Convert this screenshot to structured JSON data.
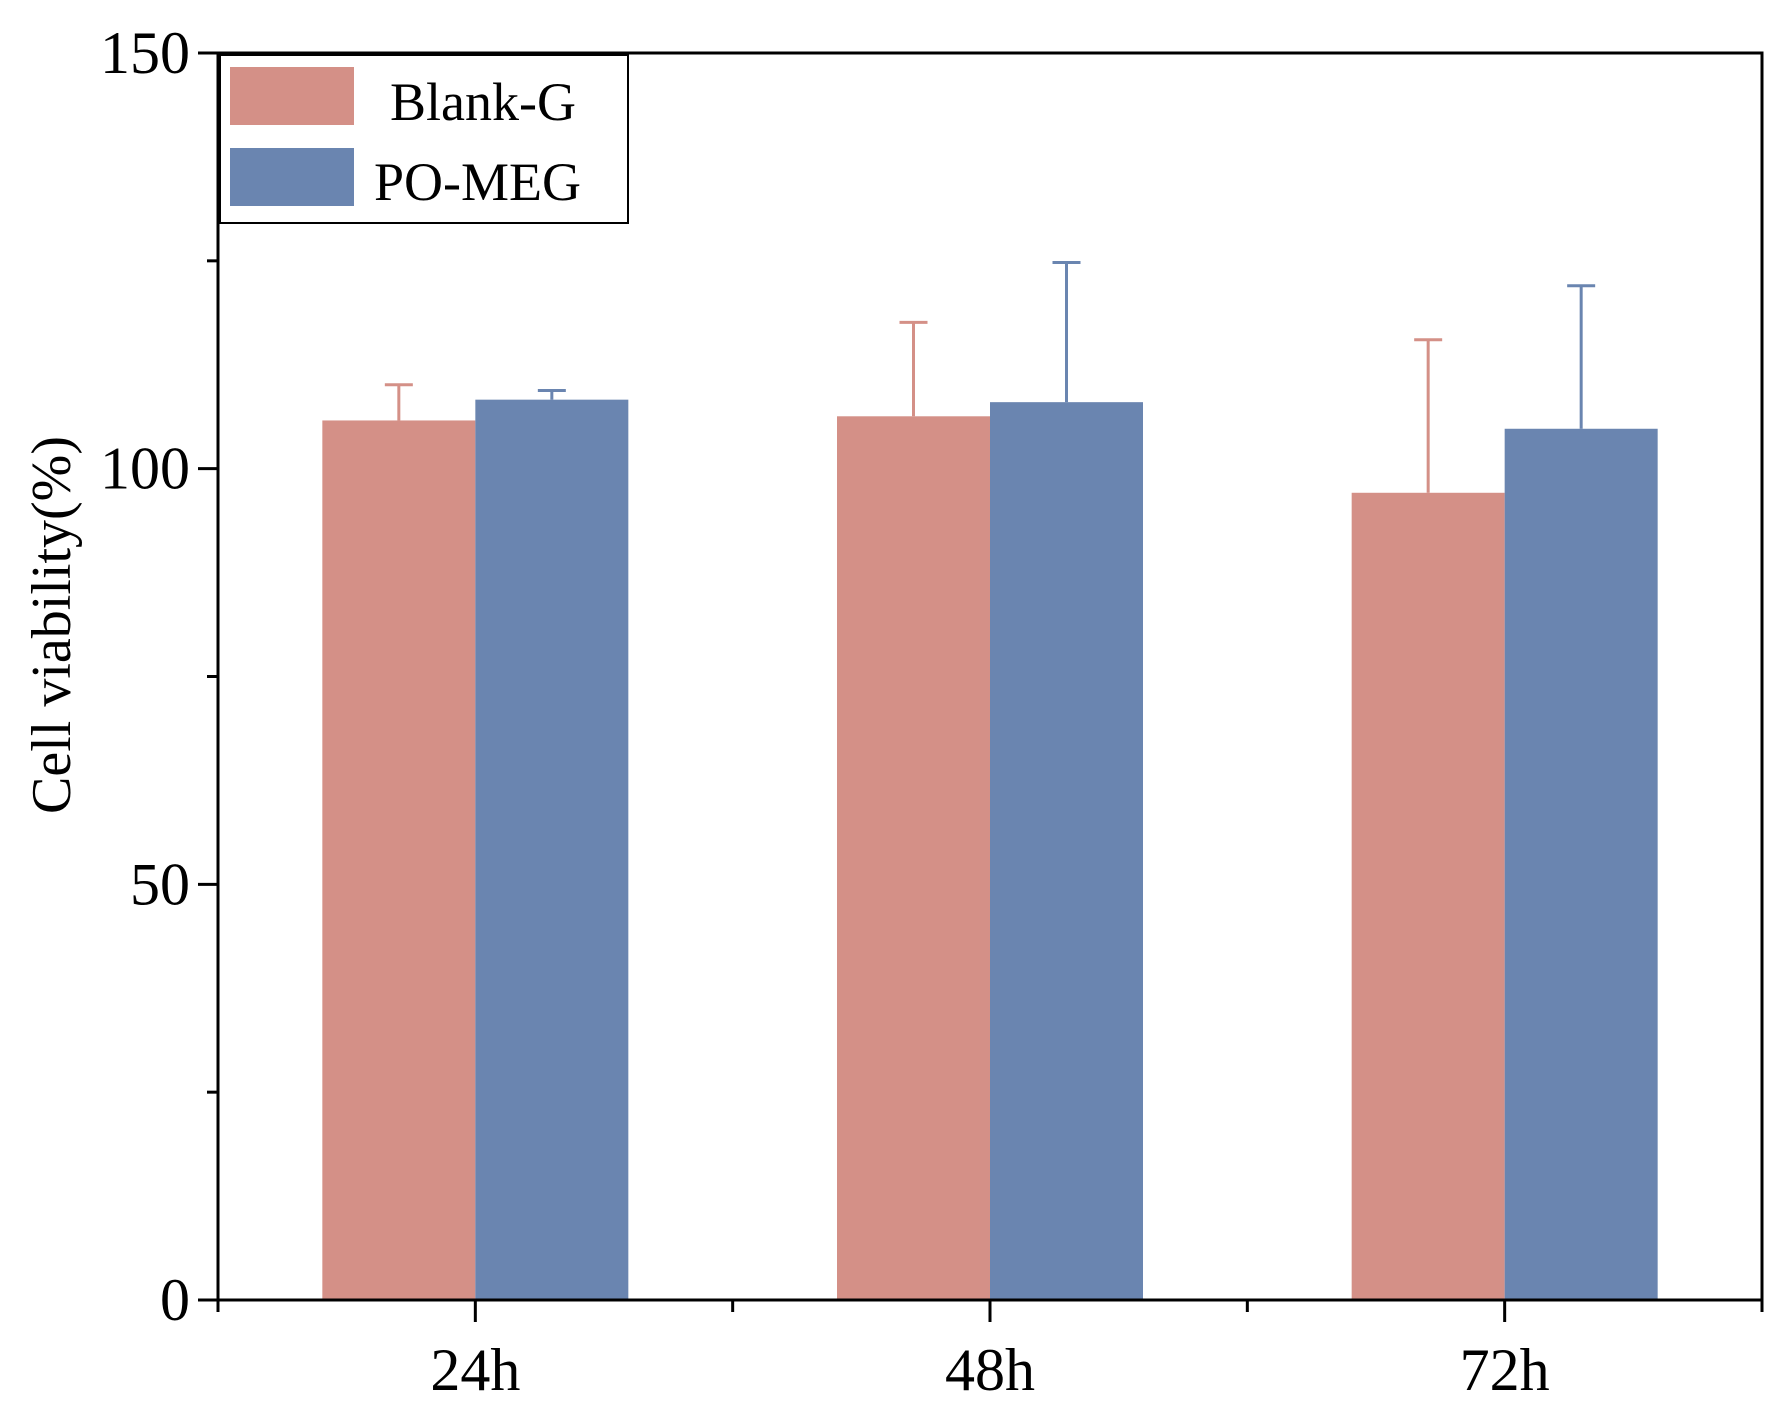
{
  "chart_data": {
    "type": "bar",
    "title": "",
    "xlabel": "",
    "ylabel": "Cell viability(%)",
    "ylim": [
      0,
      150
    ],
    "yticks": [
      0,
      50,
      100,
      150
    ],
    "categories": [
      "24h",
      "48h",
      "72h"
    ],
    "series": [
      {
        "name": "Blank-G",
        "color": "#d49087",
        "values": [
          105.8,
          106.3,
          97.1
        ],
        "errors": [
          4.3,
          11.3,
          18.4
        ]
      },
      {
        "name": "PO-MEG",
        "color": "#6a85b0",
        "values": [
          108.3,
          108.0,
          104.8
        ],
        "errors": [
          1.1,
          16.8,
          17.2
        ]
      }
    ],
    "legend": {
      "position": "top-left",
      "labels": [
        "Blank-G",
        "PO-MEG"
      ]
    }
  }
}
